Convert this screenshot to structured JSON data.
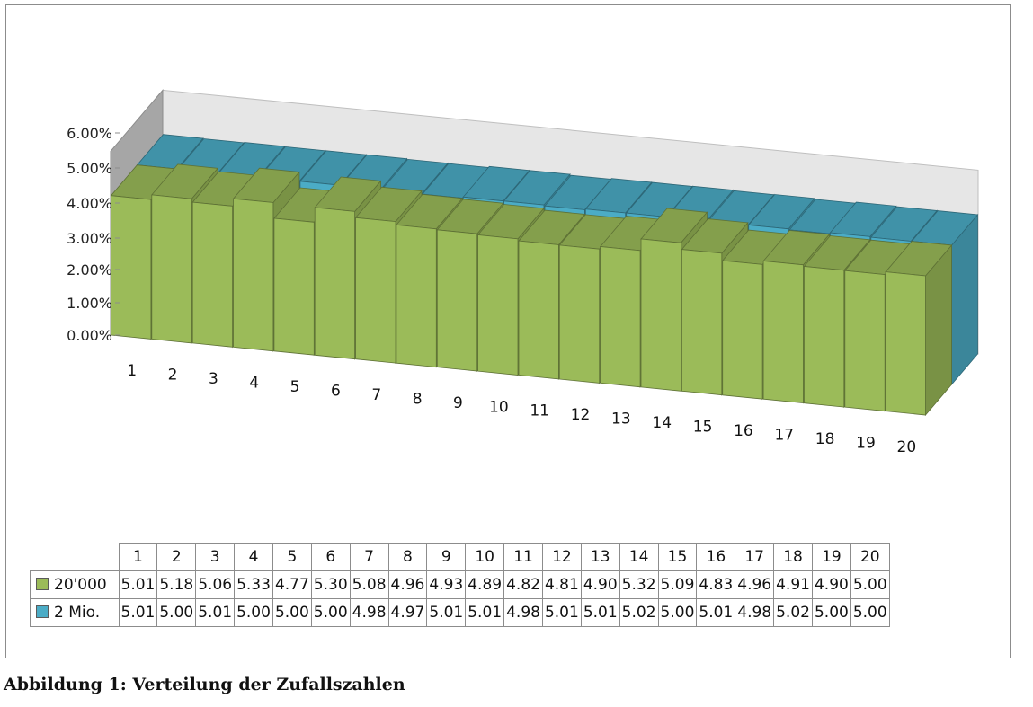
{
  "chart_data": {
    "type": "bar",
    "subtype": "3d-clustered-depth",
    "categories": [
      "1",
      "2",
      "3",
      "4",
      "5",
      "6",
      "7",
      "8",
      "9",
      "10",
      "11",
      "12",
      "13",
      "14",
      "15",
      "16",
      "17",
      "18",
      "19",
      "20"
    ],
    "series": [
      {
        "name": "20'000",
        "color": "#9bbb59",
        "values": [
          5.01,
          5.18,
          5.06,
          5.33,
          4.77,
          5.3,
          5.08,
          4.96,
          4.93,
          4.89,
          4.82,
          4.81,
          4.9,
          5.32,
          5.09,
          4.83,
          4.96,
          4.91,
          4.9,
          5.0
        ]
      },
      {
        "name": "2 Mio.",
        "color": "#4bacc6",
        "values": [
          5.01,
          5.0,
          5.01,
          5.0,
          5.0,
          5.0,
          4.98,
          4.97,
          5.01,
          5.01,
          4.98,
          5.01,
          5.01,
          5.02,
          5.0,
          5.01,
          4.98,
          5.02,
          5.0,
          5.0
        ]
      }
    ],
    "y_ticks": [
      "0.00%",
      "1.00%",
      "2.00%",
      "3.00%",
      "4.00%",
      "5.00%",
      "6.00%"
    ],
    "ylim": [
      0,
      6
    ],
    "y_unit": "%",
    "legend": "data-table-below",
    "grid": false,
    "back_wall_color": "#e6e6e6",
    "side_wall_color": "#a6a6a6"
  },
  "caption": "Abbildung 1: Verteilung der Zufallszahlen"
}
